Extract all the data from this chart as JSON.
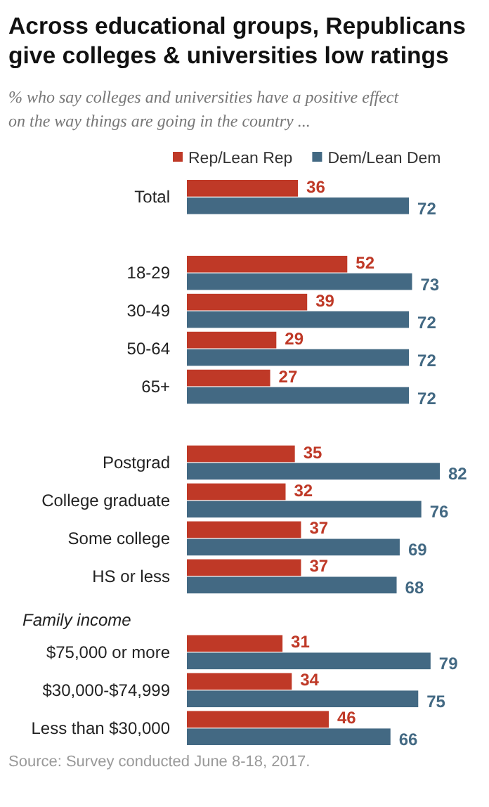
{
  "chart_data": {
    "type": "bar",
    "orientation": "horizontal",
    "title": "Across educational  groups, Republicans give colleges & universities low ratings",
    "subtitle": "% who say colleges and universities have a positive effect on the way things are going in the country ...",
    "categories": [
      "Total",
      null,
      "18-29",
      "30-49",
      "50-64",
      "65+",
      null,
      "Postgrad",
      "College graduate",
      "Some college",
      "HS or less",
      null,
      "$75,000 or more",
      "$30,000-$74,999",
      "Less than $30,000"
    ],
    "series": [
      {
        "name": "Rep/Lean Rep",
        "color": "#bf3927",
        "values": [
          36,
          null,
          52,
          39,
          29,
          27,
          null,
          35,
          32,
          37,
          37,
          null,
          31,
          34,
          46
        ]
      },
      {
        "name": "Dem/Lean Dem",
        "color": "#436983",
        "values": [
          72,
          null,
          73,
          72,
          72,
          72,
          null,
          82,
          76,
          69,
          68,
          null,
          79,
          75,
          66
        ]
      }
    ],
    "data_labels": true,
    "legend": "top right",
    "annotations": [
      "Family income",
      "Source: Survey conducted June 8-18, 2017."
    ]
  }
}
